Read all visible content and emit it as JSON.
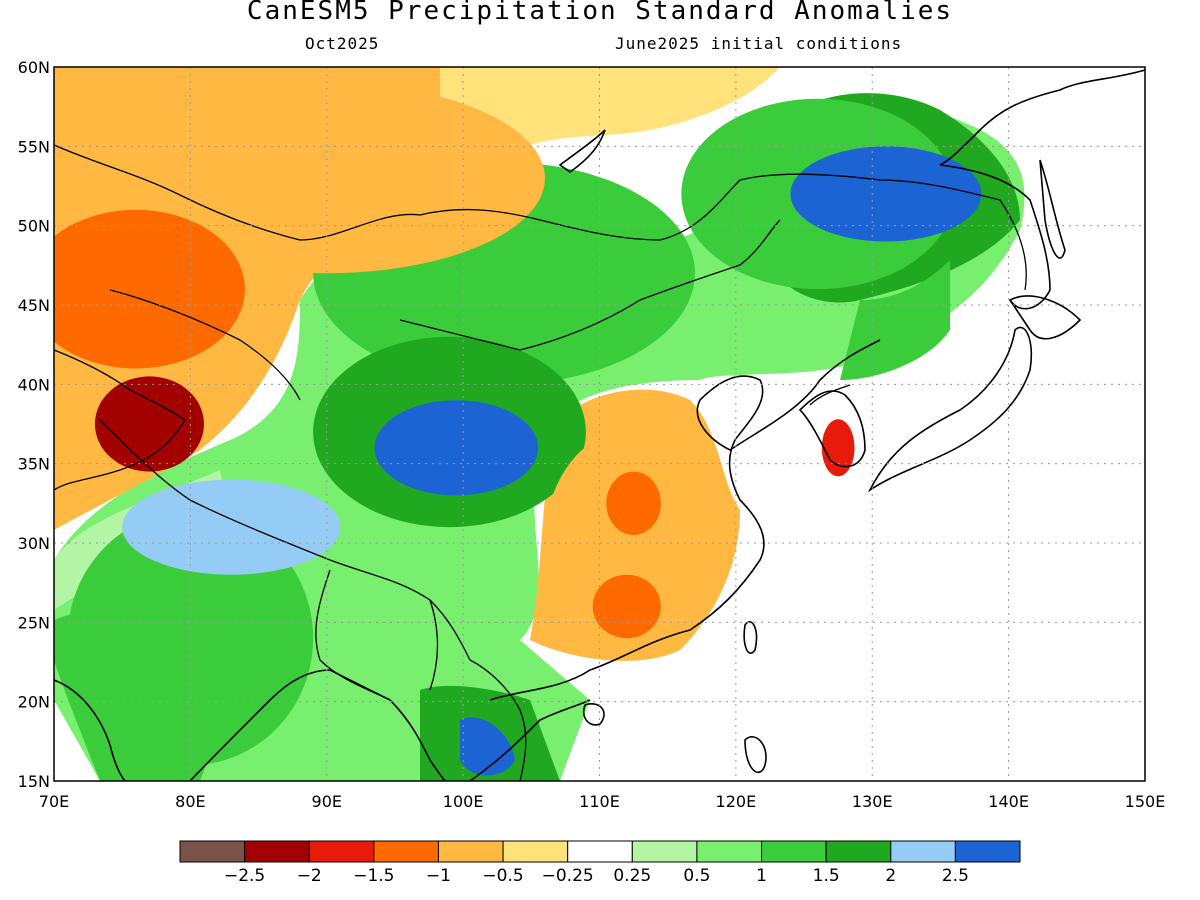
{
  "header": {
    "title": "CanESM5 Precipitation Standard Anomalies",
    "target_month": "Oct2025",
    "init_conditions": "June2025 initial conditions"
  },
  "axes": {
    "lon_labels": [
      "70E",
      "80E",
      "90E",
      "100E",
      "110E",
      "120E",
      "130E",
      "140E",
      "150E"
    ],
    "lat_labels": [
      "60N",
      "55N",
      "50N",
      "45N",
      "40N",
      "35N",
      "30N",
      "25N",
      "20N",
      "15N"
    ],
    "lon_range": [
      70,
      150
    ],
    "lat_range": [
      15,
      60
    ],
    "grid": "dotted"
  },
  "colorbar": {
    "colors": [
      "#7a5448",
      "#a30000",
      "#e81b0b",
      "#ff6a00",
      "#ffb942",
      "#ffe27a",
      "#ffffff",
      "#b3f5a4",
      "#78ef6f",
      "#3bcc3b",
      "#20a820",
      "#94ccf5",
      "#1c64d4"
    ],
    "labels": [
      "−2.5",
      "−2",
      "−1.5",
      "−1",
      "−0.5",
      "−0.25",
      "0.25",
      "0.5",
      "1",
      "1.5",
      "2",
      "2.5"
    ]
  },
  "map_regions": [
    {
      "name": "mongolia-wet",
      "lon": 103,
      "lat": 47,
      "rx": 14,
      "ry": 7,
      "level": 9
    },
    {
      "name": "tibet-wet",
      "lon": 99,
      "lat": 37,
      "rx": 10,
      "ry": 6,
      "level": 10
    },
    {
      "name": "tibet-very-wet",
      "lon": 99.5,
      "lat": 36,
      "rx": 6,
      "ry": 3,
      "level": 12
    },
    {
      "name": "india-wet",
      "lon": 80,
      "lat": 24,
      "rx": 9,
      "ry": 8,
      "level": 9
    },
    {
      "name": "himalaya-wet",
      "lon": 83,
      "lat": 31,
      "rx": 8,
      "ry": 3,
      "level": 11
    },
    {
      "name": "manchuria-wet",
      "lon": 126,
      "lat": 52,
      "rx": 10,
      "ry": 6,
      "level": 9
    },
    {
      "name": "manchuria-very-wet",
      "lon": 131,
      "lat": 52,
      "rx": 7,
      "ry": 3,
      "level": 12
    },
    {
      "name": "siberia-dry",
      "lon": 90,
      "lat": 53,
      "rx": 16,
      "ry": 6,
      "level": 4
    },
    {
      "name": "kazakh-dry",
      "lon": 76,
      "lat": 46,
      "rx": 8,
      "ry": 5,
      "level": 3
    },
    {
      "name": "pamir-very-dry",
      "lon": 77,
      "lat": 37.5,
      "rx": 4,
      "ry": 3,
      "level": 1
    },
    {
      "name": "south-china-dry",
      "lon": 112,
      "lat": 30,
      "rx": 6,
      "ry": 7,
      "level": 4
    },
    {
      "name": "south-china-core1",
      "lon": 112.5,
      "lat": 32.5,
      "rx": 2,
      "ry": 2,
      "level": 3
    },
    {
      "name": "south-china-core2",
      "lon": 112,
      "lat": 26,
      "rx": 2.5,
      "ry": 2,
      "level": 3
    },
    {
      "name": "korea-dry",
      "lon": 127.5,
      "lat": 36,
      "rx": 1.2,
      "ry": 1.8,
      "level": 2
    }
  ]
}
